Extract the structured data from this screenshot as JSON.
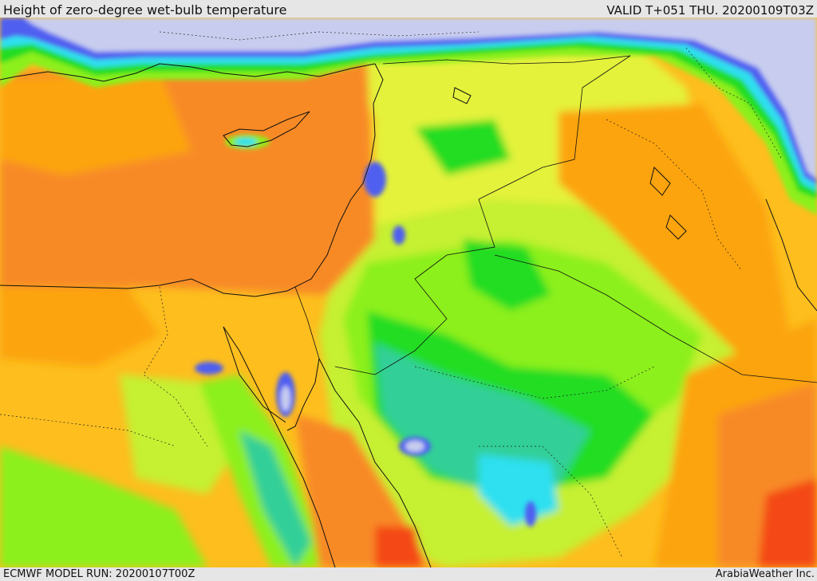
{
  "header": {
    "title": "Height of zero-degree wet-bulb temperature",
    "valid_time": "VALID T+051 THU. 20200109T03Z"
  },
  "footer": {
    "model_run": "ECMWF MODEL RUN: 20200107T00Z",
    "credit": "ArabiaWeather Inc."
  },
  "map": {
    "region": "Eastern Mediterranean and Middle East",
    "palette": {
      "lavender": "#c8cdef",
      "blue": "#4f5ff0",
      "cyan": "#2ee0f0",
      "teal": "#30cf98",
      "green": "#22dd22",
      "lime": "#8cf01a",
      "yellow_green": "#c8f030",
      "yellow": "#f0f03a",
      "light_orange": "#fdbe1e",
      "orange": "#fca40d",
      "dark_orange": "#f88a28",
      "red_orange": "#f44a16"
    }
  }
}
